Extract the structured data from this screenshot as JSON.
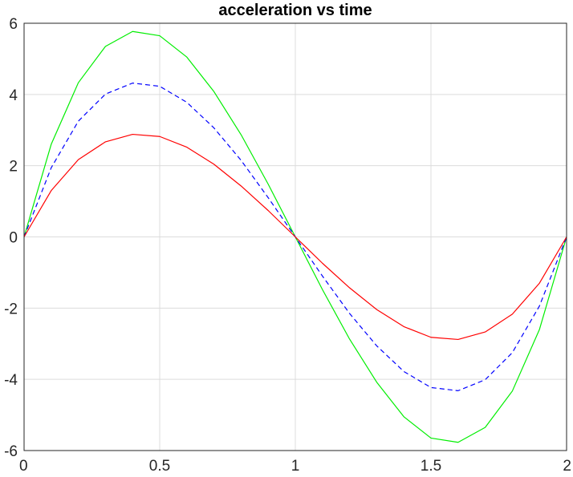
{
  "chart_data": {
    "type": "line",
    "title": "acceleration vs time",
    "xlabel": "",
    "ylabel": "",
    "xlim": [
      0,
      2
    ],
    "ylim": [
      -6,
      6
    ],
    "grid": true,
    "x_ticks": [
      0,
      0.5,
      1,
      1.5,
      2
    ],
    "x_tick_labels": [
      "0",
      "0.5",
      "1",
      "1.5",
      "2"
    ],
    "y_ticks": [
      -6,
      -4,
      -2,
      0,
      2,
      4,
      6
    ],
    "y_tick_labels": [
      "-6",
      "-4",
      "-2",
      "0",
      "2",
      "4",
      "6"
    ],
    "x": [
      0,
      0.1,
      0.2,
      0.3,
      0.4,
      0.5,
      0.6,
      0.7,
      0.8,
      0.9,
      1.0,
      1.1,
      1.2,
      1.3,
      1.4,
      1.5,
      1.6,
      1.7,
      1.8,
      1.9,
      2.0
    ],
    "series": [
      {
        "color": "#00ee00",
        "dash": "solid",
        "values": [
          0,
          2.6,
          4.33,
          5.35,
          5.77,
          5.65,
          5.05,
          4.08,
          2.87,
          1.48,
          0,
          -1.48,
          -2.87,
          -4.08,
          -5.05,
          -5.65,
          -5.77,
          -5.35,
          -4.33,
          -2.6,
          0
        ]
      },
      {
        "color": "#0000ff",
        "dash": "dashed",
        "values": [
          0,
          1.94,
          3.25,
          4.01,
          4.32,
          4.23,
          3.78,
          3.06,
          2.15,
          1.1,
          0,
          -1.1,
          -2.15,
          -3.06,
          -3.78,
          -4.23,
          -4.32,
          -4.01,
          -3.25,
          -1.94,
          0
        ]
      },
      {
        "color": "#ff0000",
        "dash": "solid",
        "values": [
          0,
          1.3,
          2.17,
          2.67,
          2.88,
          2.82,
          2.52,
          2.04,
          1.43,
          0.74,
          0,
          -0.74,
          -1.43,
          -2.04,
          -2.52,
          -2.82,
          -2.88,
          -2.67,
          -2.17,
          -1.3,
          0
        ]
      }
    ]
  }
}
